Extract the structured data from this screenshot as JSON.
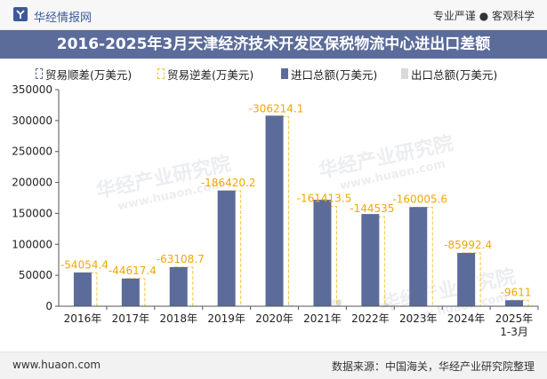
{
  "header": {
    "brand": "华经情报网",
    "slogan": "专业严谨 ● 客观科学",
    "logo_icon": "huajing-logo-icon"
  },
  "title": "2016-2025年3月天津经济技术开发区保税物流中心进出口差额",
  "legend": [
    {
      "label": "贸易顺差(万美元)",
      "color": "#5b6b9a",
      "style": "dashed"
    },
    {
      "label": "贸易逆差(万美元)",
      "color": "#f5c542",
      "style": "dashed"
    },
    {
      "label": "进口总额(万美元)",
      "color": "#5b6b9a",
      "style": "solid"
    },
    {
      "label": "出口总额(万美元)",
      "color": "#d9d9d9",
      "style": "solid"
    }
  ],
  "watermark": {
    "cn": "华经产业研究院",
    "url": "www.huaon.com"
  },
  "footer": {
    "website": "www.huaon.com",
    "source": "数据来源：中国海关，华经产业研究院整理"
  },
  "chart_data": {
    "type": "bar",
    "title": "2016-2025年3月天津经济技术开发区保税物流中心进出口差额",
    "categories": [
      "2016年",
      "2017年",
      "2018年",
      "2019年",
      "2020年",
      "2021年",
      "2022年",
      "2023年",
      "2024年",
      "2025年 1-3月"
    ],
    "category_lines": [
      [
        "2016年"
      ],
      [
        "2017年"
      ],
      [
        "2018年"
      ],
      [
        "2019年"
      ],
      [
        "2020年"
      ],
      [
        "2021年"
      ],
      [
        "2022年"
      ],
      [
        "2023年"
      ],
      [
        "2024年"
      ],
      [
        "2025年",
        "1-3月"
      ]
    ],
    "series": [
      {
        "name": "贸易顺差(万美元)",
        "values": [
          null,
          null,
          null,
          null,
          null,
          null,
          null,
          null,
          null,
          null
        ]
      },
      {
        "name": "贸易逆差(万美元)",
        "values": [
          -54054.4,
          -44617.4,
          -63108.7,
          -186420.2,
          -306214.1,
          -161413.5,
          -144535,
          -160005.6,
          -85992.4,
          -9611
        ]
      },
      {
        "name": "进口总额(万美元)",
        "values": [
          54500,
          44800,
          63300,
          187000,
          308000,
          172000,
          149000,
          160300,
          86200,
          9700
        ]
      },
      {
        "name": "出口总额(万美元)",
        "values": [
          400,
          200,
          200,
          600,
          1800,
          10600,
          4500,
          300,
          200,
          90
        ]
      }
    ],
    "data_labels": [
      "-54054.4",
      "-44617.4",
      "-63108.7",
      "-186420.2",
      "-306214.1",
      "-161413.5",
      "-144535",
      "-160005.6",
      "-85992.4",
      "-9611"
    ],
    "yticks": [
      "0",
      "50000",
      "100000",
      "150000",
      "200000",
      "250000",
      "300000",
      "350000"
    ],
    "ylim": [
      0,
      350000
    ],
    "xlabel": "",
    "ylabel": "",
    "grid": false,
    "legend_position": "top"
  }
}
